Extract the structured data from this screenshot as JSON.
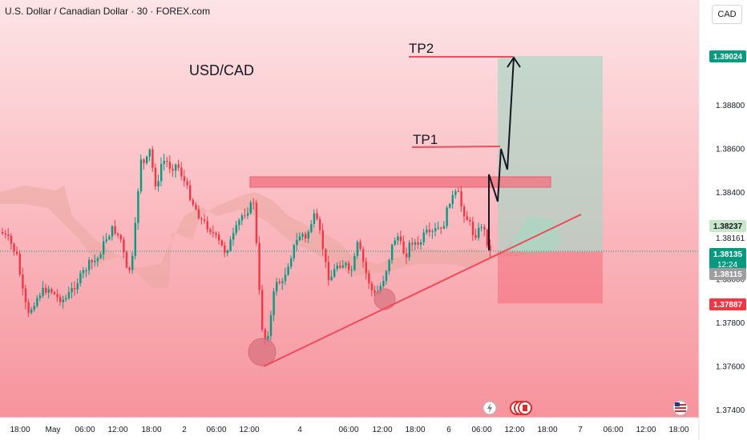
{
  "header": {
    "title": "U.S. Dollar / Canadian Dollar · 30 · FOREX.com",
    "currency": "CAD"
  },
  "chart_data": {
    "type": "candlestick",
    "symbol_label": "USD/CAD",
    "ylim": [
      1.374,
      1.3915
    ],
    "y_ticks": [
      "1.38800",
      "1.38600",
      "1.38400",
      "1.38000",
      "1.37800",
      "1.37600",
      "1.37400"
    ],
    "x_ticks": [
      "18:00",
      "May",
      "06:00",
      "12:00",
      "18:00",
      "2",
      "06:00",
      "12:00",
      "4",
      "06:00",
      "12:00",
      "18:00",
      "6",
      "06:00",
      "12:00",
      "18:00",
      "7",
      "06:00",
      "12:00",
      "18:00"
    ],
    "price_tags": [
      {
        "label": "1.39024",
        "sub": "",
        "kind": "tp",
        "color": "#089981"
      },
      {
        "label": "1.38237",
        "sub": "",
        "kind": "ichimoku",
        "color": "#c8e6c9"
      },
      {
        "label": "1.38161",
        "sub": "",
        "kind": "plain",
        "color": ""
      },
      {
        "label": "1.38135",
        "sub": "12:24",
        "kind": "current",
        "color": "#089981"
      },
      {
        "label": "1.38115",
        "sub": "",
        "kind": "cloud",
        "color": "#9e9e9e"
      },
      {
        "label": "1.37887",
        "sub": "",
        "kind": "stop",
        "color": "#f23645"
      }
    ],
    "annotations": [
      {
        "label": "TP2",
        "y": 1.39024
      },
      {
        "label": "TP1",
        "y": 1.3862
      }
    ],
    "resistance_zone": {
      "y_low": 1.3846,
      "y_high": 1.3848
    },
    "position": {
      "entry": 1.38125,
      "target": 1.39024,
      "stop": 1.37887
    },
    "trendline": {
      "from": [
        1.376
      ],
      "to": [
        1.383
      ]
    },
    "colors": {
      "up": "#089981",
      "down": "#f23645",
      "bg_top": "#fde4e6",
      "bg_bottom": "#f7939c"
    },
    "bottom_icons": [
      "lightning-icon",
      "canada-flag-icon",
      "us-flag-icon"
    ]
  }
}
